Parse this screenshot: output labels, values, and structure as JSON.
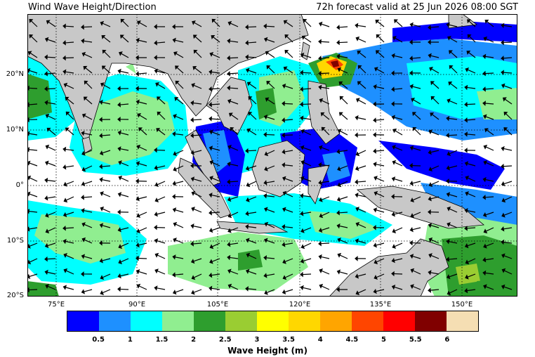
{
  "header": {
    "title": "Wind Wave Height/Direction",
    "forecast": "72h forecast valid at 25 Jun 2026 08:00 SGT"
  },
  "map": {
    "lat_labels": [
      "20°N",
      "10°N",
      "0°",
      "10°S",
      "20°S"
    ],
    "lon_labels": [
      "75°E",
      "90°E",
      "105°E",
      "120°E",
      "135°E",
      "150°E"
    ],
    "land_color": "#c8c8c8",
    "sea_calm_color": "#ffffff"
  },
  "colorbar": {
    "label": "Wave Height (m)",
    "ticks": [
      "0.5",
      "1",
      "1.5",
      "2",
      "2.5",
      "3",
      "3.5",
      "4",
      "4.5",
      "5",
      "5.5",
      "6"
    ],
    "colors": [
      "#0000ff",
      "#1e90ff",
      "#00ffff",
      "#90ee90",
      "#2e9e2e",
      "#9acd32",
      "#ffff00",
      "#ffd700",
      "#ffa500",
      "#ff4500",
      "#ff0000",
      "#800000",
      "#f5deb3"
    ]
  }
}
